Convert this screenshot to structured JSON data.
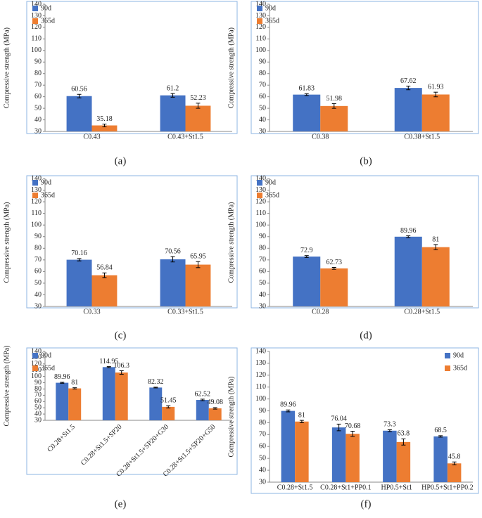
{
  "chart_data": [
    {
      "type": "bar",
      "caption": "(a)",
      "y_label": "Compressive strength (MPa)",
      "categories": [
        "C0.43",
        "C0.43+St1.5"
      ],
      "series": [
        {
          "name": "90d",
          "color": "#4472c4",
          "values": [
            60.56,
            61.2
          ],
          "errors": [
            1.5,
            1.6
          ]
        },
        {
          "name": "365d",
          "color": "#ed7d31",
          "values": [
            35.18,
            52.23
          ],
          "errors": [
            1.2,
            2.2
          ]
        }
      ],
      "ylim": [
        30,
        140
      ],
      "yticks": [
        30,
        40,
        50,
        60,
        70,
        80,
        90,
        100,
        110,
        120,
        130,
        140
      ],
      "legend": "top-left"
    },
    {
      "type": "bar",
      "caption": "(b)",
      "y_label": "Compressive strength (MPa)",
      "categories": [
        "C0.38",
        "C0.38+St1.5"
      ],
      "series": [
        {
          "name": "90d",
          "color": "#4472c4",
          "values": [
            61.83,
            67.62
          ],
          "errors": [
            0.8,
            1.6
          ]
        },
        {
          "name": "365d",
          "color": "#ed7d31",
          "values": [
            51.98,
            61.93
          ],
          "errors": [
            2.0,
            2.0
          ]
        }
      ],
      "ylim": [
        30,
        140
      ],
      "yticks": [
        30,
        40,
        50,
        60,
        70,
        80,
        90,
        100,
        110,
        120,
        130,
        140
      ],
      "legend": "top-left"
    },
    {
      "type": "bar",
      "caption": "(c)",
      "y_label": "Compressive strength (MPa)",
      "categories": [
        "C0.33",
        "C0.33+St1.5"
      ],
      "series": [
        {
          "name": "90d",
          "color": "#4472c4",
          "values": [
            70.16,
            70.56
          ],
          "errors": [
            1.0,
            2.3
          ]
        },
        {
          "name": "365d",
          "color": "#ed7d31",
          "values": [
            56.84,
            65.95
          ],
          "errors": [
            2.0,
            2.6
          ]
        }
      ],
      "ylim": [
        30,
        140
      ],
      "yticks": [
        30,
        40,
        50,
        60,
        70,
        80,
        90,
        100,
        110,
        120,
        130,
        140
      ],
      "legend": "top-left"
    },
    {
      "type": "bar",
      "caption": "(d)",
      "y_label": "Compressive strength (MPa)",
      "categories": [
        "C0.28",
        "C0.28+St1.5"
      ],
      "series": [
        {
          "name": "90d",
          "color": "#4472c4",
          "values": [
            72.9,
            89.96
          ],
          "errors": [
            0.8,
            0.8
          ]
        },
        {
          "name": "365d",
          "color": "#ed7d31",
          "values": [
            62.73,
            81
          ],
          "errors": [
            0.8,
            2.2
          ]
        }
      ],
      "ylim": [
        30,
        140
      ],
      "yticks": [
        30,
        40,
        50,
        60,
        70,
        80,
        90,
        100,
        110,
        120,
        130,
        140
      ],
      "legend": "top-left"
    },
    {
      "type": "bar",
      "caption": "(e)",
      "y_label": "Compressive strength (MPa)",
      "categories": [
        "C0.28+St1.5",
        "C0.28+St1.5+SP20",
        "C0.28+St1.5+SP20+G30",
        "C0.28+St1.5+SP20+G50"
      ],
      "series": [
        {
          "name": "90d",
          "color": "#4472c4",
          "values": [
            89.96,
            114.95,
            82.32,
            62.52
          ],
          "errors": [
            0.8,
            0.8,
            0.6,
            1.2
          ]
        },
        {
          "name": "365d",
          "color": "#ed7d31",
          "values": [
            81,
            106.3,
            51.45,
            49.08
          ],
          "errors": [
            1.0,
            2.8,
            1.8,
            1.2
          ]
        }
      ],
      "ylim": [
        30,
        140
      ],
      "yticks": [
        30,
        40,
        50,
        60,
        70,
        80,
        90,
        100,
        110,
        120,
        130,
        140
      ],
      "legend": "top-left"
    },
    {
      "type": "bar",
      "caption": "(f)",
      "y_label": "Compressive strength (MPa)",
      "categories": [
        "C0.28+St1.5",
        "C0.28+St1+PP0.1",
        "HP0.5+St1",
        "HP0.5+St1+PP0.2"
      ],
      "series": [
        {
          "name": "90d",
          "color": "#4472c4",
          "values": [
            89.96,
            76.04,
            73.3,
            68.5
          ],
          "errors": [
            0.8,
            2.8,
            0.8,
            0.6
          ]
        },
        {
          "name": "365d",
          "color": "#ed7d31",
          "values": [
            81,
            70.68,
            63.8,
            45.8
          ],
          "errors": [
            1.0,
            2.2,
            2.6,
            1.2
          ]
        }
      ],
      "ylim": [
        30,
        140
      ],
      "yticks": [
        30,
        40,
        50,
        60,
        70,
        80,
        90,
        100,
        110,
        120,
        130,
        140
      ],
      "legend": "top-right"
    }
  ]
}
